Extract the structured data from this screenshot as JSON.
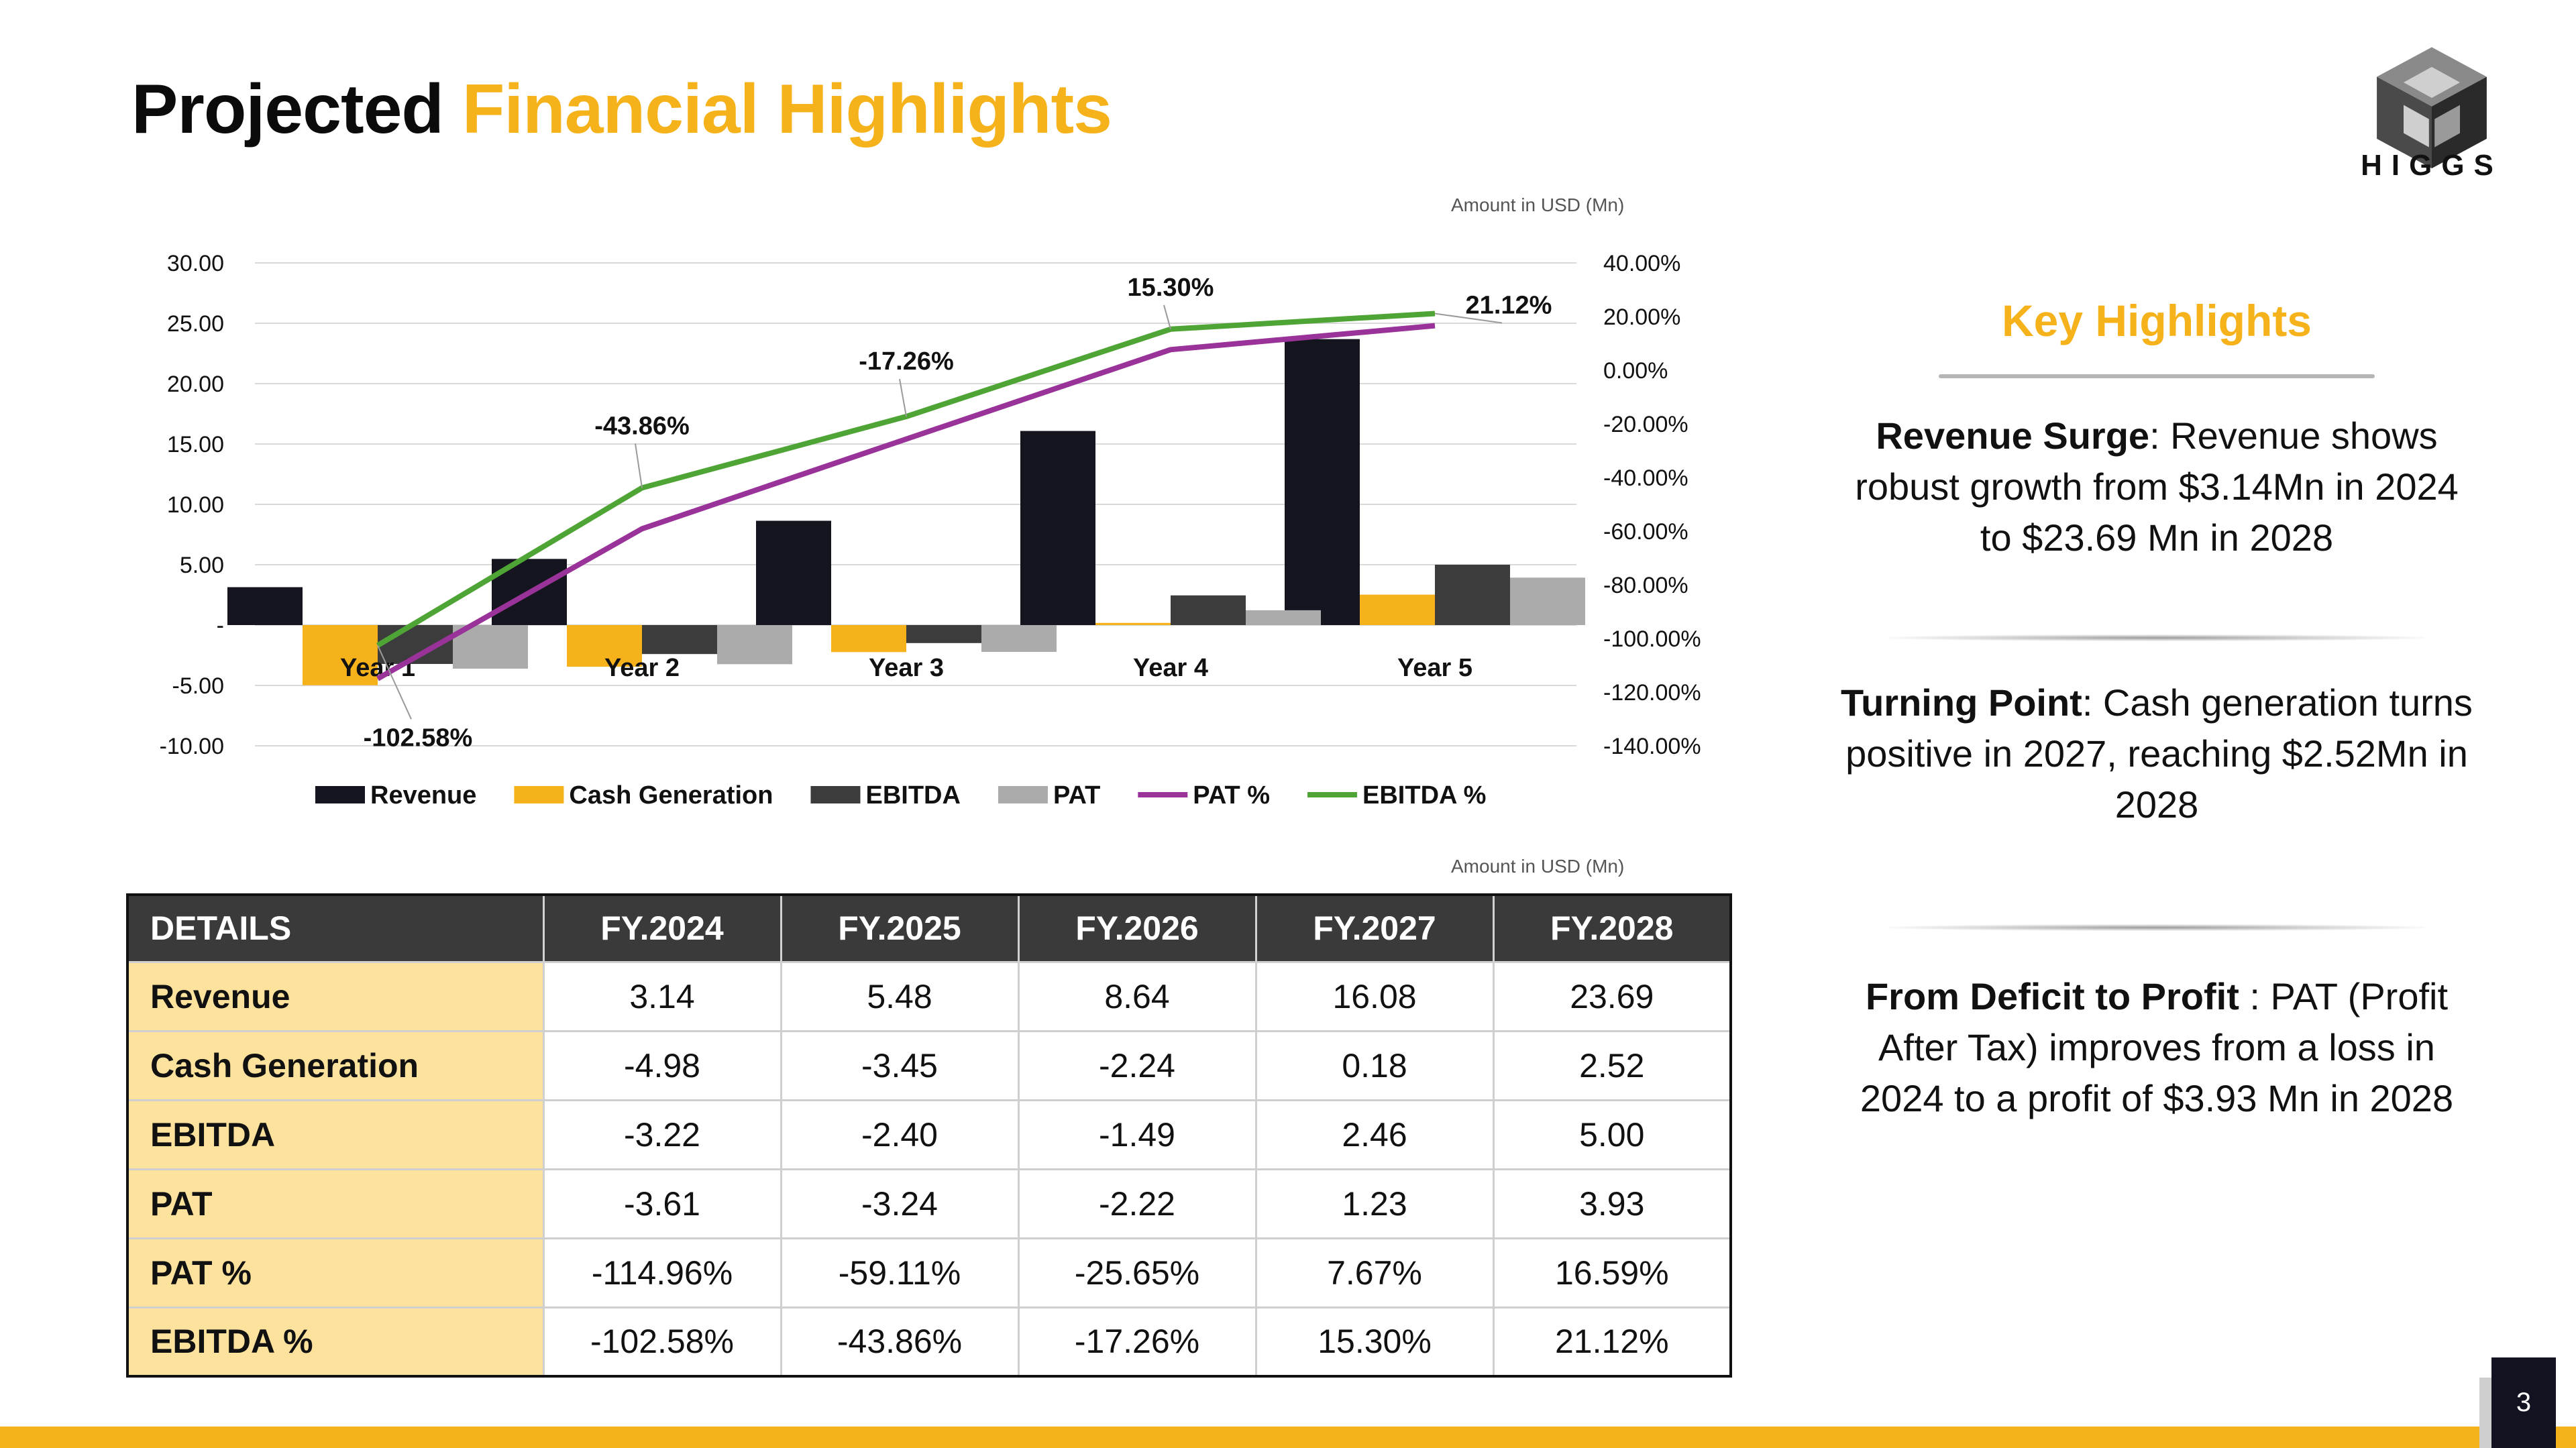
{
  "title": {
    "part1": "Projected",
    "part2": "Financial Highlights"
  },
  "logo": {
    "text": "HIGGS"
  },
  "chart_unit_label": "Amount in USD (Mn)",
  "table_unit_label": "Amount in USD (Mn)",
  "chart_data": {
    "type": "bar",
    "categories": [
      "Year 1",
      "Year 2",
      "Year 3",
      "Year 4",
      "Year 5"
    ],
    "series": [
      {
        "name": "Revenue",
        "kind": "bar",
        "axis": "left",
        "color": "#15151f",
        "values": [
          3.14,
          5.48,
          8.64,
          16.08,
          23.69
        ]
      },
      {
        "name": "Cash Generation",
        "kind": "bar",
        "axis": "left",
        "color": "#f5b21a",
        "values": [
          -4.98,
          -3.45,
          -2.24,
          0.18,
          2.52
        ]
      },
      {
        "name": "EBITDA",
        "kind": "bar",
        "axis": "left",
        "color": "#3c3c3c",
        "values": [
          -3.22,
          -2.4,
          -1.49,
          2.46,
          5.0
        ]
      },
      {
        "name": "PAT",
        "kind": "bar",
        "axis": "left",
        "color": "#ababab",
        "values": [
          -3.61,
          -3.24,
          -2.22,
          1.23,
          3.93
        ]
      },
      {
        "name": "PAT %",
        "kind": "line",
        "axis": "right",
        "color": "#993399",
        "values": [
          -114.96,
          -59.11,
          -25.65,
          7.67,
          16.59
        ]
      },
      {
        "name": "EBITDA %",
        "kind": "line",
        "axis": "right",
        "color": "#4ea434",
        "values": [
          -102.58,
          -43.86,
          -17.26,
          15.3,
          21.12
        ]
      }
    ],
    "y_left": {
      "ticks": [
        "30.00",
        "25.00",
        "20.00",
        "15.00",
        "10.00",
        "5.00",
        "-",
        "-5.00",
        "-10.00"
      ],
      "ylim": [
        -10,
        30
      ]
    },
    "y_right": {
      "ticks": [
        "40.00%",
        "20.00%",
        "0.00%",
        "-20.00%",
        "-40.00%",
        "-60.00%",
        "-80.00%",
        "-100.00%",
        "-120.00%",
        "-140.00%"
      ],
      "ylim": [
        -140,
        40
      ]
    },
    "data_labels": [
      "-102.58%",
      "-43.86%",
      "-17.26%",
      "15.30%",
      "21.12%"
    ],
    "grid": true,
    "legend_position": "bottom"
  },
  "table": {
    "headers": [
      "DETAILS",
      "FY.2024",
      "FY.2025",
      "FY.2026",
      "FY.2027",
      "FY.2028"
    ],
    "rows": [
      {
        "label": "Revenue",
        "values": [
          "3.14",
          "5.48",
          "8.64",
          "16.08",
          "23.69"
        ]
      },
      {
        "label": "Cash Generation",
        "values": [
          "-4.98",
          "-3.45",
          "-2.24",
          "0.18",
          "2.52"
        ]
      },
      {
        "label": "EBITDA",
        "values": [
          "-3.22",
          "-2.40",
          "-1.49",
          "2.46",
          "5.00"
        ]
      },
      {
        "label": "PAT",
        "values": [
          "-3.61",
          "-3.24",
          "-2.22",
          "1.23",
          "3.93"
        ]
      },
      {
        "label": "PAT %",
        "values": [
          "-114.96%",
          "-59.11%",
          "-25.65%",
          "7.67%",
          "16.59%"
        ]
      },
      {
        "label": "EBITDA %",
        "values": [
          "-102.58%",
          "-43.86%",
          "-17.26%",
          "15.30%",
          "21.12%"
        ]
      }
    ]
  },
  "highlights": {
    "title": "Key Highlights",
    "items": [
      {
        "bold": "Revenue Surge",
        "text": ": Revenue shows robust growth from $3.14Mn in 2024 to $23.69 Mn in 2028"
      },
      {
        "bold": "Turning Point",
        "text": ": Cash generation turns positive in 2027, reaching $2.52Mn in 2028"
      },
      {
        "bold": "From Deficit to Profit",
        "text": " : PAT (Profit After Tax) improves from a loss in 2024 to a profit of $3.93 Mn in 2028"
      }
    ]
  },
  "page_number": "3",
  "colors": {
    "accent": "#f5b21a",
    "dark": "#111420",
    "table_label_bg": "#fde29d"
  }
}
